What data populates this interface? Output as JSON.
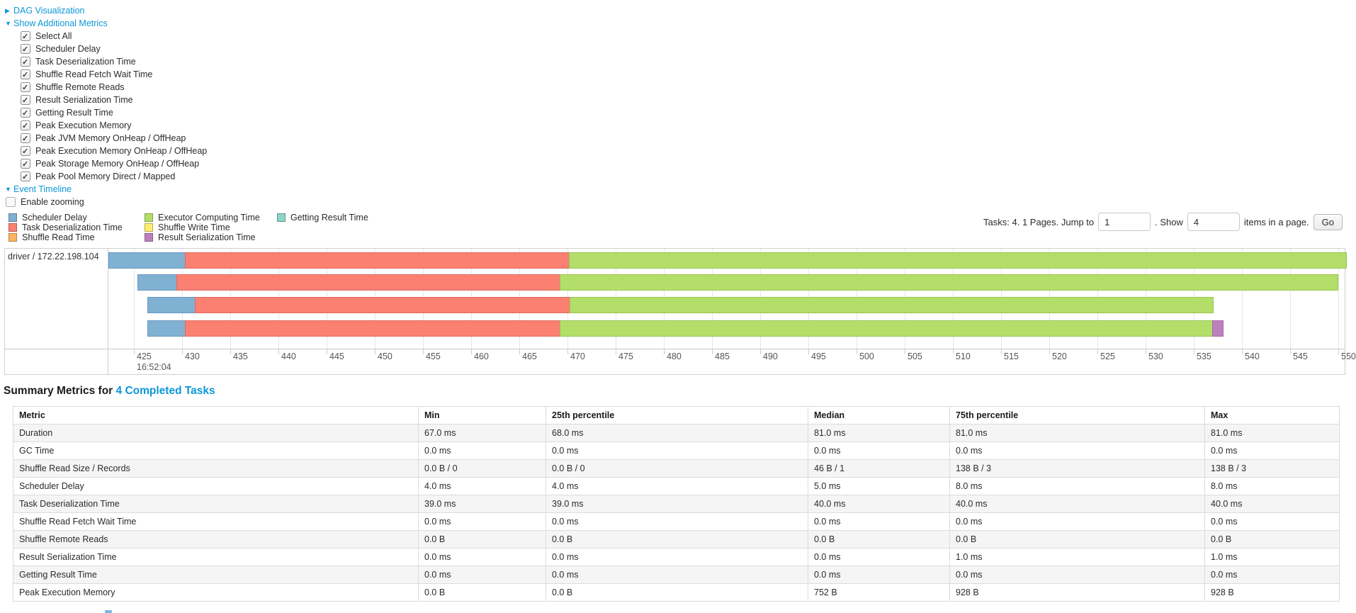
{
  "controls": {
    "dag_label": "DAG Visualization",
    "metrics_label": "Show Additional Metrics",
    "metrics_items": [
      {
        "label": "Select All",
        "checked": true
      },
      {
        "label": "Scheduler Delay",
        "checked": true
      },
      {
        "label": "Task Deserialization Time",
        "checked": true
      },
      {
        "label": "Shuffle Read Fetch Wait Time",
        "checked": true
      },
      {
        "label": "Shuffle Remote Reads",
        "checked": true
      },
      {
        "label": "Result Serialization Time",
        "checked": true
      },
      {
        "label": "Getting Result Time",
        "checked": true
      },
      {
        "label": "Peak Execution Memory",
        "checked": true
      },
      {
        "label": "Peak JVM Memory OnHeap / OffHeap",
        "checked": true
      },
      {
        "label": "Peak Execution Memory OnHeap / OffHeap",
        "checked": true
      },
      {
        "label": "Peak Storage Memory OnHeap / OffHeap",
        "checked": true
      },
      {
        "label": "Peak Pool Memory Direct / Mapped",
        "checked": true
      }
    ],
    "event_timeline_label": "Event Timeline",
    "enable_zooming_label": "Enable zooming",
    "enable_zooming_checked": false
  },
  "pagination": {
    "prefix": "Tasks: 4. 1 Pages. Jump to",
    "jump_value": "1",
    "mid": ". Show",
    "show_value": "4",
    "suffix": "items in a page.",
    "go_label": "Go"
  },
  "chart_data": {
    "type": "timeline",
    "group_label": "driver / 172.22.198.104",
    "axis": {
      "min": 422.35,
      "max": 550.66,
      "tick_start": 425,
      "tick_step": 5,
      "tick_end": 550,
      "start_time_label": "16:52:04"
    },
    "colors": {
      "scheduler_delay": "#80B1D3",
      "task_deserialization": "#FB8072",
      "shuffle_read": "#FDB462",
      "executor_computing": "#B3DE69",
      "shuffle_write": "#FFED6F",
      "result_serialization": "#BC80BD",
      "getting_result": "#8DD3C7"
    },
    "border_colors": {
      "scheduler_delay": "#6B98C1",
      "task_deserialization": "#E06B5E",
      "shuffle_read": "#E09A4B",
      "executor_computing": "#99C454",
      "shuffle_write": "#E0D05A",
      "result_serialization": "#A668A7",
      "getting_result": "#76B8AC"
    },
    "legend_columns": [
      [
        {
          "key": "scheduler_delay",
          "label": "Scheduler Delay"
        },
        {
          "key": "task_deserialization",
          "label": "Task Deserialization Time"
        },
        {
          "key": "shuffle_read",
          "label": "Shuffle Read Time"
        }
      ],
      [
        {
          "key": "executor_computing",
          "label": "Executor Computing Time"
        },
        {
          "key": "shuffle_write",
          "label": "Shuffle Write Time"
        },
        {
          "key": "result_serialization",
          "label": "Result Serialization Time"
        }
      ],
      [
        {
          "key": "getting_result",
          "label": "Getting Result Time"
        }
      ]
    ],
    "tasks": [
      {
        "segments": [
          {
            "key": "scheduler_delay",
            "start": 422.35,
            "end": 430.3
          },
          {
            "key": "task_deserialization",
            "start": 430.3,
            "end": 470.15
          },
          {
            "key": "executor_computing",
            "start": 470.15,
            "end": 550.8
          }
        ]
      },
      {
        "segments": [
          {
            "key": "scheduler_delay",
            "start": 425.4,
            "end": 429.4
          },
          {
            "key": "task_deserialization",
            "start": 429.4,
            "end": 469.2
          },
          {
            "key": "executor_computing",
            "start": 469.2,
            "end": 549.9
          }
        ]
      },
      {
        "segments": [
          {
            "key": "scheduler_delay",
            "start": 426.4,
            "end": 431.3
          },
          {
            "key": "task_deserialization",
            "start": 431.3,
            "end": 470.2
          },
          {
            "key": "executor_computing",
            "start": 470.2,
            "end": 537.0
          }
        ]
      },
      {
        "segments": [
          {
            "key": "scheduler_delay",
            "start": 426.4,
            "end": 430.3
          },
          {
            "key": "task_deserialization",
            "start": 430.3,
            "end": 469.2
          },
          {
            "key": "executor_computing",
            "start": 469.2,
            "end": 536.9
          },
          {
            "key": "result_serialization",
            "start": 536.9,
            "end": 538.0
          }
        ]
      }
    ]
  },
  "summary": {
    "title_prefix": "Summary Metrics for",
    "title_link": "4 Completed Tasks",
    "columns": [
      "Metric",
      "Min",
      "25th percentile",
      "Median",
      "75th percentile",
      "Max"
    ],
    "rows": [
      [
        "Duration",
        "67.0 ms",
        "68.0 ms",
        "81.0 ms",
        "81.0 ms",
        "81.0 ms"
      ],
      [
        "GC Time",
        "0.0 ms",
        "0.0 ms",
        "0.0 ms",
        "0.0 ms",
        "0.0 ms"
      ],
      [
        "Shuffle Read Size / Records",
        "0.0 B / 0",
        "0.0 B / 0",
        "46 B / 1",
        "138 B / 3",
        "138 B / 3"
      ],
      [
        "Scheduler Delay",
        "4.0 ms",
        "4.0 ms",
        "5.0 ms",
        "8.0 ms",
        "8.0 ms"
      ],
      [
        "Task Deserialization Time",
        "39.0 ms",
        "39.0 ms",
        "40.0 ms",
        "40.0 ms",
        "40.0 ms"
      ],
      [
        "Shuffle Read Fetch Wait Time",
        "0.0 ms",
        "0.0 ms",
        "0.0 ms",
        "0.0 ms",
        "0.0 ms"
      ],
      [
        "Shuffle Remote Reads",
        "0.0 B",
        "0.0 B",
        "0.0 B",
        "0.0 B",
        "0.0 B"
      ],
      [
        "Result Serialization Time",
        "0.0 ms",
        "0.0 ms",
        "0.0 ms",
        "1.0 ms",
        "1.0 ms"
      ],
      [
        "Getting Result Time",
        "0.0 ms",
        "0.0 ms",
        "0.0 ms",
        "0.0 ms",
        "0.0 ms"
      ],
      [
        "Peak Execution Memory",
        "0.0 B",
        "0.0 B",
        "752 B",
        "928 B",
        "928 B"
      ]
    ]
  }
}
